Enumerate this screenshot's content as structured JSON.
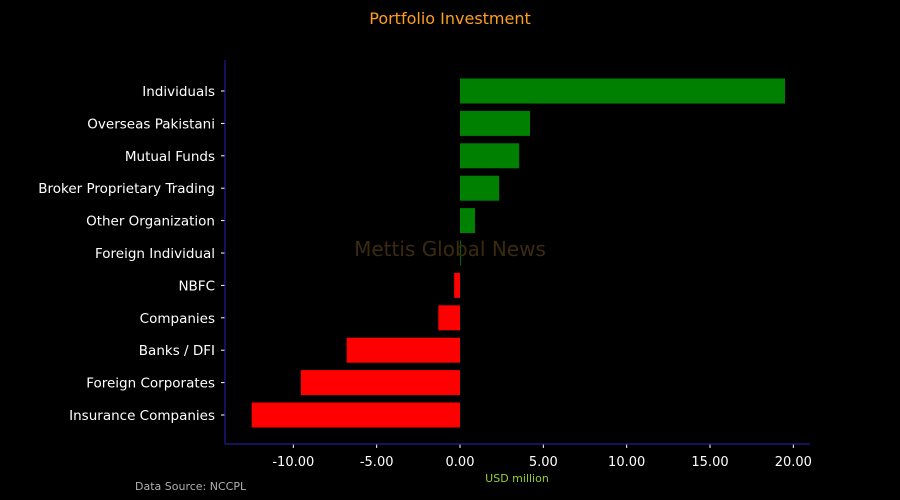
{
  "chart_data": {
    "type": "bar",
    "orientation": "horizontal",
    "title": "Portfolio Investment",
    "xlabel": "USD million",
    "ylabel": "",
    "categories": [
      "Individuals",
      "Overseas Pakistani",
      "Mutual Funds",
      "Broker Proprietary Trading",
      "Other Organization",
      "Foreign Individual",
      "NBFC",
      "Companies",
      "Banks / DFI",
      "Foreign Corporates",
      "Insurance Companies"
    ],
    "values": [
      19.5,
      4.2,
      3.55,
      2.35,
      0.9,
      0.05,
      -0.35,
      -1.3,
      -6.8,
      -9.55,
      -12.5
    ],
    "xlim": [
      -14.1,
      21.0
    ],
    "xticks": [
      -10,
      -5,
      0,
      5,
      10,
      15,
      20
    ],
    "xtick_labels": [
      "-10.00",
      "-5.00",
      "0.00",
      "5.00",
      "10.00",
      "15.00",
      "20.00"
    ],
    "positive_color": "#008000",
    "negative_color": "#ff0000",
    "grid": false,
    "source": "Data Source: NCCPL",
    "watermark": "Mettis Global News"
  }
}
